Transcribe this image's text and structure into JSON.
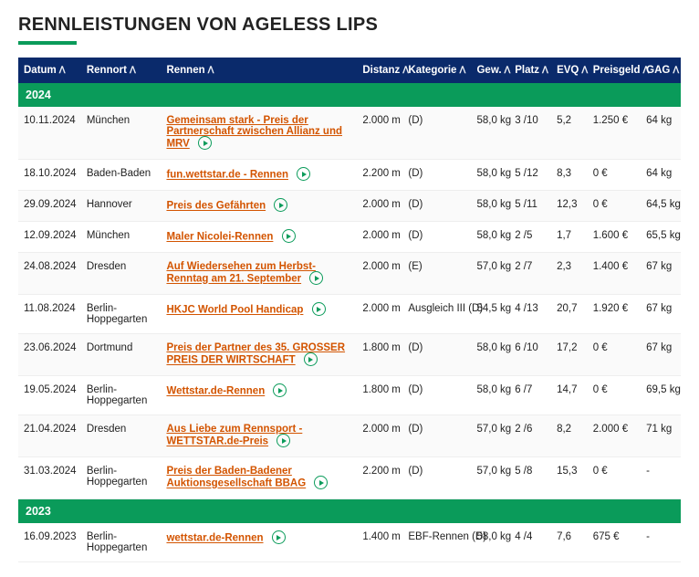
{
  "title": "RENNLEISTUNGEN VON AGELESS LIPS",
  "headers": {
    "datum": "Datum",
    "rennort": "Rennort",
    "rennen": "Rennen",
    "distanz": "Distanz",
    "kategorie": "Kategorie",
    "gew": "Gew.",
    "platz": "Platz",
    "evq": "EVQ",
    "preisgeld": "Preisgeld",
    "gag": "GAG"
  },
  "sort_glyph": "ᐱ",
  "colors": {
    "header_bg": "#0a2a6b",
    "year_bg": "#0a9b5a",
    "link": "#d35400",
    "underline": "#0a9b5a"
  },
  "groups": [
    {
      "year": "2024",
      "rows": [
        {
          "datum": "10.11.2024",
          "ort": "München",
          "rennen": "Gemeinsam stark - Preis der Partnerschaft zwischen Allianz und MRV",
          "play": true,
          "dist": "2.000 m",
          "kat": "(D)",
          "gew": "58,0 kg",
          "platz": "3 /10",
          "evq": "5,2",
          "geld": "1.250 €",
          "gag": "64 kg"
        },
        {
          "datum": "18.10.2024",
          "ort": "Baden-Baden",
          "rennen": "fun.wettstar.de - Rennen",
          "play": true,
          "dist": "2.200 m",
          "kat": "(D)",
          "gew": "58,0 kg",
          "platz": "5 /12",
          "evq": "8,3",
          "geld": "0 €",
          "gag": "64 kg"
        },
        {
          "datum": "29.09.2024",
          "ort": "Hannover",
          "rennen": "Preis des Gefährten",
          "play": true,
          "dist": "2.000 m",
          "kat": "(D)",
          "gew": "58,0 kg",
          "platz": "5 /11",
          "evq": "12,3",
          "geld": "0 €",
          "gag": "64,5 kg"
        },
        {
          "datum": "12.09.2024",
          "ort": "München",
          "rennen": "Maler Nicolei-Rennen",
          "play": true,
          "dist": "2.000 m",
          "kat": "(D)",
          "gew": "58,0 kg",
          "platz": "2 /5",
          "evq": "1,7",
          "geld": "1.600 €",
          "gag": "65,5 kg"
        },
        {
          "datum": "24.08.2024",
          "ort": "Dresden",
          "rennen": "Auf Wiedersehen zum Herbst-Renntag am 21. September",
          "play": true,
          "dist": "2.000 m",
          "kat": "(E)",
          "gew": "57,0 kg",
          "platz": "2 /7",
          "evq": "2,3",
          "geld": "1.400 €",
          "gag": "67 kg"
        },
        {
          "datum": "11.08.2024",
          "ort": "Berlin-Hoppegarten",
          "rennen": "HKJC World Pool Handicap",
          "play": true,
          "dist": "2.000 m",
          "kat": "Ausgleich III (D)",
          "gew": "54,5 kg",
          "platz": "4 /13",
          "evq": "20,7",
          "geld": "1.920 €",
          "gag": "67 kg"
        },
        {
          "datum": "23.06.2024",
          "ort": "Dortmund",
          "rennen": "Preis der Partner des 35. GROSSER PREIS DER WIRTSCHAFT",
          "play": true,
          "dist": "1.800 m",
          "kat": "(D)",
          "gew": "58,0 kg",
          "platz": "6 /10",
          "evq": "17,2",
          "geld": "0 €",
          "gag": "67 kg"
        },
        {
          "datum": "19.05.2024",
          "ort": "Berlin-Hoppegarten",
          "rennen": "Wettstar.de-Rennen",
          "play": true,
          "dist": "1.800 m",
          "kat": "(D)",
          "gew": "58,0 kg",
          "platz": "6 /7",
          "evq": "14,7",
          "geld": "0 €",
          "gag": "69,5 kg"
        },
        {
          "datum": "21.04.2024",
          "ort": "Dresden",
          "rennen": "Aus Liebe zum Rennsport - WETTSTAR.de-Preis",
          "play": true,
          "dist": "2.000 m",
          "kat": "(D)",
          "gew": "57,0 kg",
          "platz": "2 /6",
          "evq": "8,2",
          "geld": "2.000 €",
          "gag": "71 kg"
        },
        {
          "datum": "31.03.2024",
          "ort": "Berlin-Hoppegarten",
          "rennen": "Preis der Baden-Badener Auktionsgesellschaft BBAG",
          "play": true,
          "dist": "2.200 m",
          "kat": "(D)",
          "gew": "57,0 kg",
          "platz": "5 /8",
          "evq": "15,3",
          "geld": "0 €",
          "gag": "-"
        }
      ]
    },
    {
      "year": "2023",
      "rows": [
        {
          "datum": "16.09.2023",
          "ort": "Berlin-Hoppegarten",
          "rennen": "wettstar.de-Rennen",
          "play": true,
          "dist": "1.400 m",
          "kat": "EBF-Rennen (D)",
          "gew": "58,0 kg",
          "platz": "4 /4",
          "evq": "7,6",
          "geld": "675 €",
          "gag": "-"
        }
      ]
    }
  ]
}
